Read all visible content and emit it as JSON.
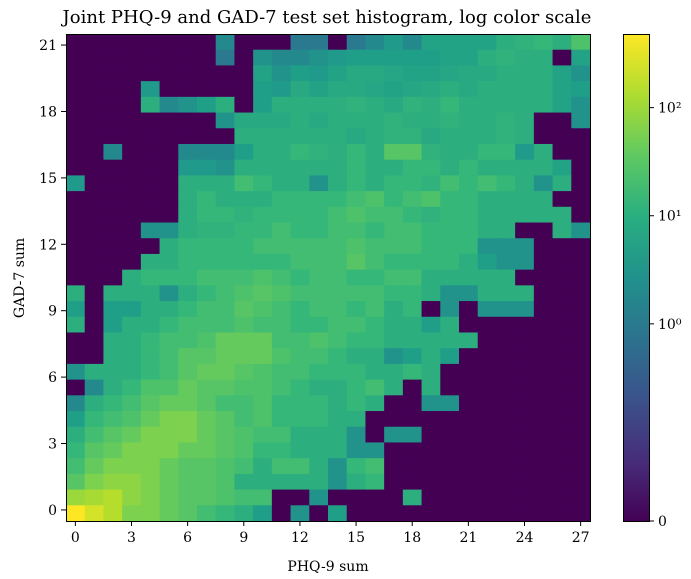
{
  "chart_data": {
    "type": "heatmap",
    "title": "Joint PHQ-9 and GAD-7 test set histogram, log color scale",
    "xlabel": "PHQ-9 sum",
    "ylabel": "GAD-7 sum",
    "x_ticks": [
      "0",
      "3",
      "6",
      "9",
      "12",
      "15",
      "18",
      "21",
      "24",
      "27"
    ],
    "y_ticks": [
      "0",
      "3",
      "6",
      "9",
      "12",
      "15",
      "18",
      "21"
    ],
    "xlim": [
      -0.5,
      27.5
    ],
    "ylim": [
      -0.5,
      21.5
    ],
    "color_scale": "log",
    "colormap": "viridis",
    "colorbar_ticks": [
      {
        "value": 0,
        "label": "0"
      },
      {
        "value": 1,
        "label": "10^0"
      },
      {
        "value": 10,
        "label": "10^1"
      },
      {
        "value": 100,
        "label": "10^2"
      }
    ],
    "colorbar_max": 480,
    "rows_top_to_bottom": [
      [
        0,
        0,
        0,
        0,
        0,
        0,
        0,
        0,
        2,
        0,
        0,
        0,
        1,
        1,
        0,
        1,
        2,
        4,
        2,
        6,
        6,
        6,
        6,
        10,
        12,
        15,
        10,
        25
      ],
      [
        0,
        0,
        0,
        0,
        0,
        0,
        0,
        0,
        1,
        0,
        3,
        2,
        2,
        3,
        4,
        5,
        5,
        5,
        5,
        5,
        6,
        6,
        10,
        12,
        10,
        10,
        0,
        6
      ],
      [
        0,
        0,
        0,
        0,
        0,
        0,
        0,
        0,
        0,
        0,
        6,
        3,
        5,
        4,
        6,
        8,
        8,
        7,
        6,
        6,
        7,
        8,
        8,
        10,
        10,
        10,
        6,
        3
      ],
      [
        0,
        0,
        0,
        0,
        4,
        0,
        0,
        0,
        0,
        0,
        5,
        4,
        8,
        6,
        8,
        8,
        7,
        6,
        7,
        8,
        10,
        8,
        10,
        10,
        10,
        10,
        6,
        5
      ],
      [
        0,
        0,
        0,
        0,
        10,
        2,
        3,
        5,
        10,
        0,
        5,
        10,
        10,
        10,
        10,
        12,
        10,
        8,
        12,
        10,
        15,
        10,
        10,
        10,
        10,
        10,
        6,
        3
      ],
      [
        0,
        0,
        0,
        0,
        0,
        0,
        0,
        0,
        3,
        8,
        8,
        8,
        10,
        8,
        10,
        10,
        10,
        12,
        10,
        10,
        12,
        10,
        10,
        12,
        10,
        0,
        0,
        3
      ],
      [
        0,
        0,
        0,
        0,
        0,
        0,
        0,
        0,
        0,
        10,
        10,
        10,
        10,
        10,
        10,
        8,
        10,
        12,
        12,
        8,
        10,
        10,
        10,
        12,
        10,
        0,
        0,
        0
      ],
      [
        0,
        0,
        2,
        0,
        0,
        0,
        2,
        2,
        2,
        5,
        10,
        10,
        15,
        12,
        10,
        15,
        10,
        30,
        30,
        12,
        10,
        10,
        15,
        15,
        4,
        10,
        0,
        0
      ],
      [
        0,
        0,
        0,
        0,
        0,
        0,
        4,
        4,
        3,
        10,
        10,
        10,
        10,
        10,
        10,
        15,
        10,
        10,
        15,
        15,
        10,
        15,
        10,
        10,
        10,
        10,
        6,
        0
      ],
      [
        4,
        0,
        0,
        0,
        0,
        0,
        10,
        10,
        10,
        20,
        15,
        10,
        10,
        3,
        10,
        15,
        10,
        15,
        15,
        12,
        20,
        15,
        20,
        15,
        10,
        3,
        10,
        0
      ],
      [
        0,
        0,
        0,
        0,
        0,
        0,
        10,
        15,
        10,
        10,
        10,
        15,
        15,
        15,
        15,
        20,
        25,
        15,
        20,
        25,
        15,
        15,
        10,
        10,
        10,
        10,
        0,
        0
      ],
      [
        0,
        0,
        0,
        0,
        0,
        0,
        10,
        15,
        15,
        12,
        15,
        15,
        15,
        15,
        20,
        25,
        20,
        20,
        15,
        12,
        15,
        15,
        10,
        10,
        10,
        10,
        10,
        0
      ],
      [
        0,
        0,
        0,
        0,
        3,
        3,
        10,
        12,
        12,
        15,
        15,
        20,
        15,
        15,
        20,
        20,
        15,
        20,
        20,
        15,
        15,
        15,
        10,
        10,
        0,
        0,
        10,
        3
      ],
      [
        0,
        0,
        0,
        0,
        0,
        10,
        15,
        15,
        15,
        15,
        20,
        20,
        20,
        20,
        20,
        25,
        20,
        20,
        20,
        15,
        15,
        15,
        3,
        3,
        3,
        0,
        0,
        0
      ],
      [
        0,
        0,
        0,
        0,
        10,
        10,
        15,
        15,
        15,
        15,
        15,
        15,
        20,
        20,
        20,
        30,
        20,
        15,
        15,
        15,
        15,
        10,
        5,
        3,
        3,
        0,
        0,
        0
      ],
      [
        0,
        0,
        0,
        10,
        15,
        15,
        15,
        20,
        20,
        20,
        25,
        20,
        15,
        20,
        20,
        15,
        15,
        20,
        20,
        10,
        10,
        10,
        10,
        10,
        0,
        0,
        0,
        0
      ],
      [
        10,
        0,
        10,
        10,
        10,
        3,
        10,
        15,
        20,
        25,
        30,
        25,
        20,
        20,
        20,
        20,
        20,
        15,
        15,
        10,
        3,
        3,
        10,
        10,
        10,
        0,
        0,
        0
      ],
      [
        5,
        0,
        5,
        5,
        10,
        10,
        15,
        20,
        20,
        30,
        25,
        20,
        15,
        20,
        20,
        15,
        20,
        10,
        15,
        0,
        3,
        0,
        3,
        3,
        3,
        0,
        0,
        0
      ],
      [
        10,
        0,
        5,
        10,
        10,
        15,
        20,
        20,
        20,
        25,
        20,
        20,
        15,
        15,
        20,
        20,
        15,
        10,
        10,
        5,
        10,
        0,
        0,
        0,
        0,
        0,
        0,
        0
      ],
      [
        0,
        0,
        10,
        10,
        15,
        20,
        20,
        25,
        40,
        40,
        40,
        20,
        20,
        25,
        20,
        15,
        15,
        10,
        10,
        10,
        10,
        10,
        0,
        0,
        0,
        0,
        0,
        0
      ],
      [
        0,
        0,
        10,
        10,
        15,
        20,
        30,
        30,
        40,
        40,
        40,
        25,
        20,
        20,
        15,
        10,
        10,
        3,
        5,
        10,
        5,
        0,
        0,
        0,
        0,
        0,
        0,
        0
      ],
      [
        3,
        10,
        10,
        10,
        15,
        20,
        30,
        40,
        40,
        30,
        25,
        20,
        20,
        15,
        15,
        15,
        10,
        10,
        15,
        10,
        0,
        0,
        0,
        0,
        0,
        0,
        0,
        0
      ],
      [
        0,
        2,
        10,
        15,
        25,
        25,
        40,
        30,
        30,
        25,
        25,
        20,
        15,
        10,
        10,
        15,
        20,
        10,
        0,
        10,
        0,
        0,
        0,
        0,
        0,
        0,
        0,
        0
      ],
      [
        2,
        10,
        15,
        20,
        30,
        40,
        40,
        30,
        20,
        20,
        25,
        15,
        15,
        15,
        10,
        15,
        10,
        0,
        0,
        3,
        3,
        0,
        0,
        0,
        0,
        0,
        0,
        0
      ],
      [
        5,
        15,
        20,
        25,
        40,
        60,
        60,
        40,
        30,
        20,
        25,
        15,
        15,
        15,
        10,
        10,
        0,
        0,
        0,
        0,
        0,
        0,
        0,
        0,
        0,
        0,
        0,
        0
      ],
      [
        10,
        20,
        30,
        40,
        60,
        60,
        60,
        40,
        30,
        25,
        20,
        20,
        10,
        10,
        10,
        3,
        0,
        3,
        3,
        0,
        0,
        0,
        0,
        0,
        0,
        0,
        0,
        0
      ],
      [
        15,
        30,
        40,
        60,
        60,
        60,
        40,
        40,
        30,
        25,
        15,
        15,
        10,
        10,
        10,
        3,
        3,
        0,
        0,
        0,
        0,
        0,
        0,
        0,
        0,
        0,
        0,
        0
      ],
      [
        20,
        40,
        60,
        60,
        60,
        40,
        30,
        30,
        25,
        20,
        10,
        20,
        20,
        10,
        3,
        15,
        20,
        0,
        0,
        0,
        0,
        0,
        0,
        0,
        0,
        0,
        0,
        0
      ],
      [
        30,
        60,
        80,
        80,
        60,
        40,
        30,
        30,
        25,
        10,
        10,
        10,
        10,
        10,
        3,
        10,
        15,
        0,
        0,
        0,
        0,
        0,
        0,
        0,
        0,
        0,
        0,
        0
      ],
      [
        100,
        120,
        150,
        80,
        60,
        40,
        30,
        30,
        25,
        20,
        20,
        0,
        0,
        3,
        0,
        0,
        0,
        0,
        10,
        0,
        0,
        0,
        0,
        0,
        0,
        0,
        0,
        0
      ],
      [
        480,
        250,
        150,
        60,
        60,
        40,
        30,
        20,
        15,
        10,
        5,
        0,
        3,
        0,
        5,
        0,
        0,
        0,
        0,
        0,
        0,
        0,
        0,
        0,
        0,
        0,
        0,
        0
      ]
    ]
  }
}
